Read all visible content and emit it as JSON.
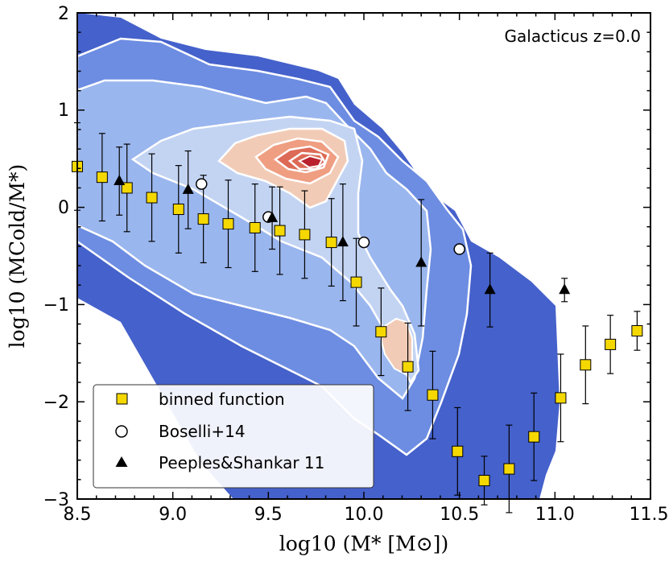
{
  "chart_data": {
    "type": "scatter",
    "annotation": "Galacticus z=0.0",
    "xlabel": "log10 (M* [M⊙])",
    "ylabel": "log10 (MCold/M*)",
    "xlim": [
      8.5,
      11.5
    ],
    "ylim": [
      -3,
      2
    ],
    "x_ticks": [
      "8.5",
      "9.0",
      "9.5",
      "10.0",
      "10.5",
      "11.0",
      "11.5"
    ],
    "y_ticks": [
      "−3",
      "−2",
      "−1",
      "0",
      "1",
      "2"
    ],
    "series": [
      {
        "name": "binned function",
        "marker": "square",
        "color": "#f5d800",
        "x": [
          8.5,
          8.63,
          8.76,
          8.89,
          9.03,
          9.16,
          9.29,
          9.43,
          9.56,
          9.69,
          9.83,
          9.96,
          10.09,
          10.23,
          10.36,
          10.49,
          10.63,
          10.76,
          10.89,
          11.03,
          11.16,
          11.29,
          11.43
        ],
        "y": [
          0.42,
          0.31,
          0.2,
          0.1,
          -0.02,
          -0.12,
          -0.17,
          -0.21,
          -0.24,
          -0.28,
          -0.36,
          -0.77,
          -1.28,
          -1.64,
          -1.93,
          -2.51,
          -2.81,
          -2.69,
          -2.36,
          -1.96,
          -1.62,
          -1.41,
          -1.27
        ],
        "yerr": [
          0.45,
          0.45,
          0.45,
          0.45,
          0.45,
          0.45,
          0.45,
          0.45,
          0.45,
          0.45,
          0.45,
          0.45,
          0.45,
          0.45,
          0.45,
          0.45,
          0.25,
          0.45,
          0.45,
          0.45,
          0.4,
          0.3,
          0.2
        ]
      },
      {
        "name": "Boselli+14",
        "marker": "circle",
        "color": "#ffffff",
        "x": [
          9.15,
          9.5,
          10.0,
          10.5
        ],
        "y": [
          0.24,
          -0.1,
          -0.36,
          -0.43
        ],
        "yerr": [
          0,
          0,
          0,
          0
        ]
      },
      {
        "name": "Peeples&Shankar 11",
        "marker": "triangle",
        "color": "#000000",
        "x": [
          8.72,
          9.08,
          9.52,
          9.89,
          10.3,
          10.66,
          11.05
        ],
        "y": [
          0.27,
          0.18,
          -0.11,
          -0.36,
          -0.57,
          -0.85,
          -0.85
        ],
        "yerr": [
          0.35,
          0.4,
          0.32,
          0.6,
          0.65,
          0.38,
          0.12
        ]
      }
    ]
  },
  "colors": {
    "level1": "#4561cb",
    "level2": "#6d8de2",
    "level3": "#9ab6ee",
    "level4": "#c3d4f3",
    "peak1": "#f2cbb6",
    "peak2": "#ef9e82",
    "peak3": "#dd6a56",
    "peak4": "#b9212f",
    "contour_line": "#ffffff"
  }
}
